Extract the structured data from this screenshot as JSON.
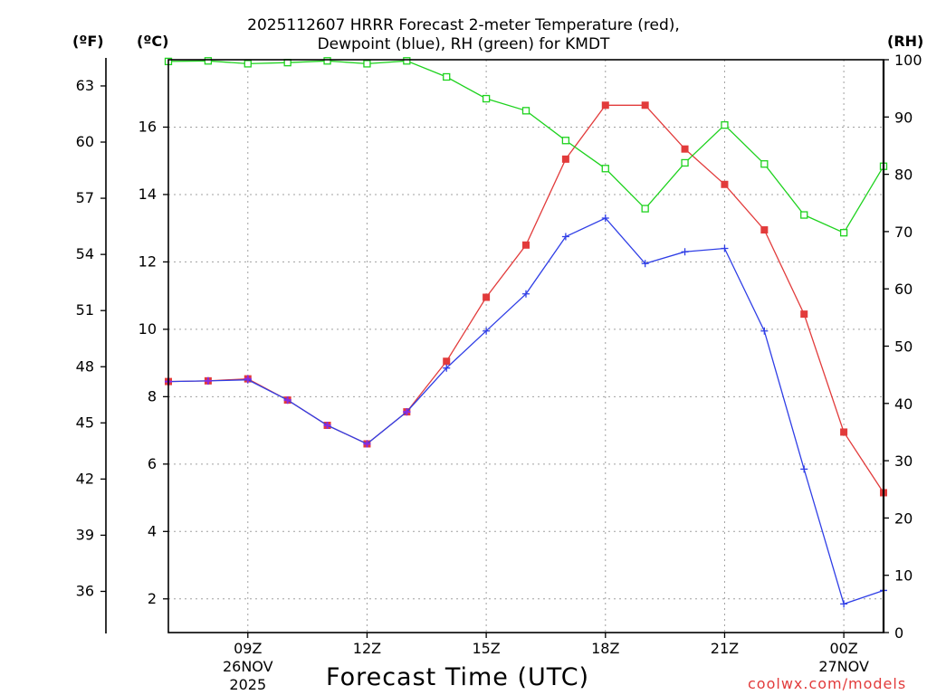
{
  "chart_data": {
    "type": "line",
    "title_line1": "2025112607 HRRR Forecast 2-meter Temperature (red),",
    "title_line2": "Dewpoint (blue), RH (green) for KMDT",
    "xlabel": "Forecast Time (UTC)",
    "credit": "coolwx.com/models",
    "units": {
      "fahrenheit": "(ºF)",
      "celsius": "(ºC)",
      "rh": "(RH)"
    },
    "x_hours": [
      7,
      8,
      9,
      10,
      11,
      12,
      13,
      14,
      15,
      16,
      17,
      18,
      19,
      20,
      21,
      22,
      23,
      24,
      25
    ],
    "x_range": [
      7,
      25
    ],
    "ylim_c": [
      1.0,
      18.0
    ],
    "ylim_rh": [
      0,
      100
    ],
    "x_ticks": [
      {
        "hour": 9,
        "label": "09Z",
        "date": "26NOV",
        "year": "2025"
      },
      {
        "hour": 12,
        "label": "12Z"
      },
      {
        "hour": 15,
        "label": "15Z"
      },
      {
        "hour": 18,
        "label": "18Z"
      },
      {
        "hour": 21,
        "label": "21Z"
      },
      {
        "hour": 24,
        "label": "00Z",
        "date": "27NOV"
      }
    ],
    "y_ticks_c": [
      "2",
      "4",
      "6",
      "8",
      "10",
      "12",
      "14",
      "16"
    ],
    "y_ticks_f": [
      "36",
      "39",
      "42",
      "45",
      "48",
      "51",
      "54",
      "57",
      "60",
      "63"
    ],
    "y_ticks_rh": [
      "0",
      "10",
      "20",
      "30",
      "40",
      "50",
      "60",
      "70",
      "80",
      "90",
      "100"
    ],
    "colors": {
      "temperature": "#e23b3b",
      "dewpoint": "#2f3ee6",
      "rh": "#1ed21e",
      "grid": "#a0a0a0",
      "overlap": "#8a2be2"
    },
    "series": [
      {
        "name": "Temperature",
        "unit": "C",
        "values": [
          8.45,
          8.47,
          8.53,
          7.9,
          7.15,
          6.6,
          7.55,
          9.05,
          10.95,
          12.5,
          15.05,
          16.65,
          16.65,
          15.35,
          14.3,
          12.95,
          10.45,
          6.95,
          5.15
        ]
      },
      {
        "name": "Dewpoint",
        "unit": "C",
        "values": [
          8.45,
          8.47,
          8.5,
          7.9,
          7.15,
          6.6,
          7.55,
          8.85,
          9.95,
          11.05,
          12.75,
          13.3,
          11.95,
          12.3,
          12.4,
          9.95,
          5.85,
          1.85,
          2.25
        ]
      },
      {
        "name": "RH",
        "unit": "%",
        "values": [
          99.7,
          99.8,
          99.3,
          99.5,
          99.8,
          99.3,
          99.8,
          97.0,
          93.2,
          91.1,
          85.9,
          81.0,
          74.0,
          82.0,
          88.6,
          81.8,
          72.9,
          69.8,
          81.4
        ]
      }
    ]
  }
}
